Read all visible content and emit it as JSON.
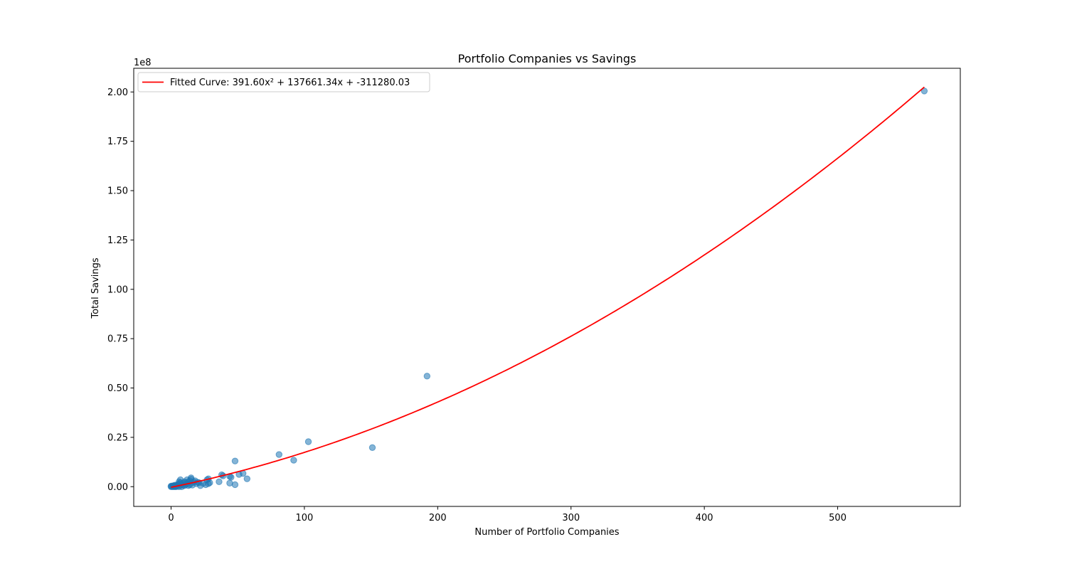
{
  "chart_data": {
    "type": "scatter",
    "title": "Portfolio Companies vs Savings",
    "xlabel": "Number of Portfolio Companies",
    "ylabel": "Total Savings",
    "y_offset_label": "1e8",
    "xlim": [
      -28,
      592
    ],
    "ylim": [
      -0.1,
      2.12
    ],
    "y_unit_scale": 100000000,
    "xticks": [
      0,
      100,
      200,
      300,
      400,
      500
    ],
    "xtick_labels": [
      "0",
      "100",
      "200",
      "300",
      "400",
      "500"
    ],
    "yticks": [
      0,
      0.25,
      0.5,
      0.75,
      1.0,
      1.25,
      1.5,
      1.75,
      2.0
    ],
    "ytick_labels": [
      "0.00",
      "0.25",
      "0.50",
      "0.75",
      "1.00",
      "1.25",
      "1.50",
      "1.75",
      "2.00"
    ],
    "grid": false,
    "legend_position": "top-left",
    "point_color": "#1f77b4",
    "curve_color": "#ff0000",
    "fit": {
      "label": "Fitted Curve: 391.60x² + 137661.34x + -311280.03",
      "a": 391.6,
      "b": 137661.34,
      "c": -311280.03,
      "x_range": [
        0,
        565
      ]
    },
    "points": [
      [
        565,
        2.005
      ],
      [
        192,
        0.56
      ],
      [
        103,
        0.228
      ],
      [
        151,
        0.198
      ],
      [
        81,
        0.163
      ],
      [
        92,
        0.134
      ],
      [
        48,
        0.13
      ],
      [
        54,
        0.067
      ],
      [
        51,
        0.062
      ],
      [
        38,
        0.06
      ],
      [
        39,
        0.055
      ],
      [
        44,
        0.052
      ],
      [
        45,
        0.048
      ],
      [
        57,
        0.04
      ],
      [
        44,
        0.018
      ],
      [
        48,
        0.01
      ],
      [
        36,
        0.025
      ],
      [
        28,
        0.04
      ],
      [
        27,
        0.035
      ],
      [
        29,
        0.02
      ],
      [
        28,
        0.015
      ],
      [
        24,
        0.017
      ],
      [
        22,
        0.005
      ],
      [
        20,
        0.022
      ],
      [
        18,
        0.03
      ],
      [
        17,
        0.025
      ],
      [
        16,
        0.02
      ],
      [
        15,
        0.045
      ],
      [
        15,
        0.038
      ],
      [
        14,
        0.03
      ],
      [
        14,
        0.01
      ],
      [
        13,
        0.025
      ],
      [
        12,
        0.035
      ],
      [
        12,
        0.015
      ],
      [
        11,
        0.02
      ],
      [
        11,
        0.01
      ],
      [
        10,
        0.005
      ],
      [
        10,
        0.025
      ],
      [
        9,
        0.018
      ],
      [
        9,
        0.008
      ],
      [
        8,
        0.012
      ],
      [
        8,
        0.0
      ],
      [
        7,
        0.035
      ],
      [
        7,
        0.02
      ],
      [
        7,
        0.008
      ],
      [
        6,
        0.015
      ],
      [
        6,
        0.0
      ],
      [
        5,
        0.01
      ],
      [
        5,
        0.004
      ],
      [
        4,
        0.006
      ],
      [
        4,
        0.0
      ],
      [
        3,
        0.008
      ],
      [
        3,
        0.002
      ],
      [
        3,
        0.0
      ],
      [
        2,
        0.005
      ],
      [
        2,
        0.0
      ],
      [
        2,
        0.003
      ],
      [
        1,
        0.0
      ],
      [
        1,
        0.004
      ],
      [
        1,
        0.002
      ],
      [
        0,
        0.0
      ],
      [
        0,
        0.003
      ],
      [
        6,
        0.025
      ],
      [
        13,
        0.005
      ],
      [
        16,
        0.008
      ],
      [
        19,
        0.015
      ],
      [
        21,
        0.02
      ],
      [
        26,
        0.01
      ]
    ]
  }
}
